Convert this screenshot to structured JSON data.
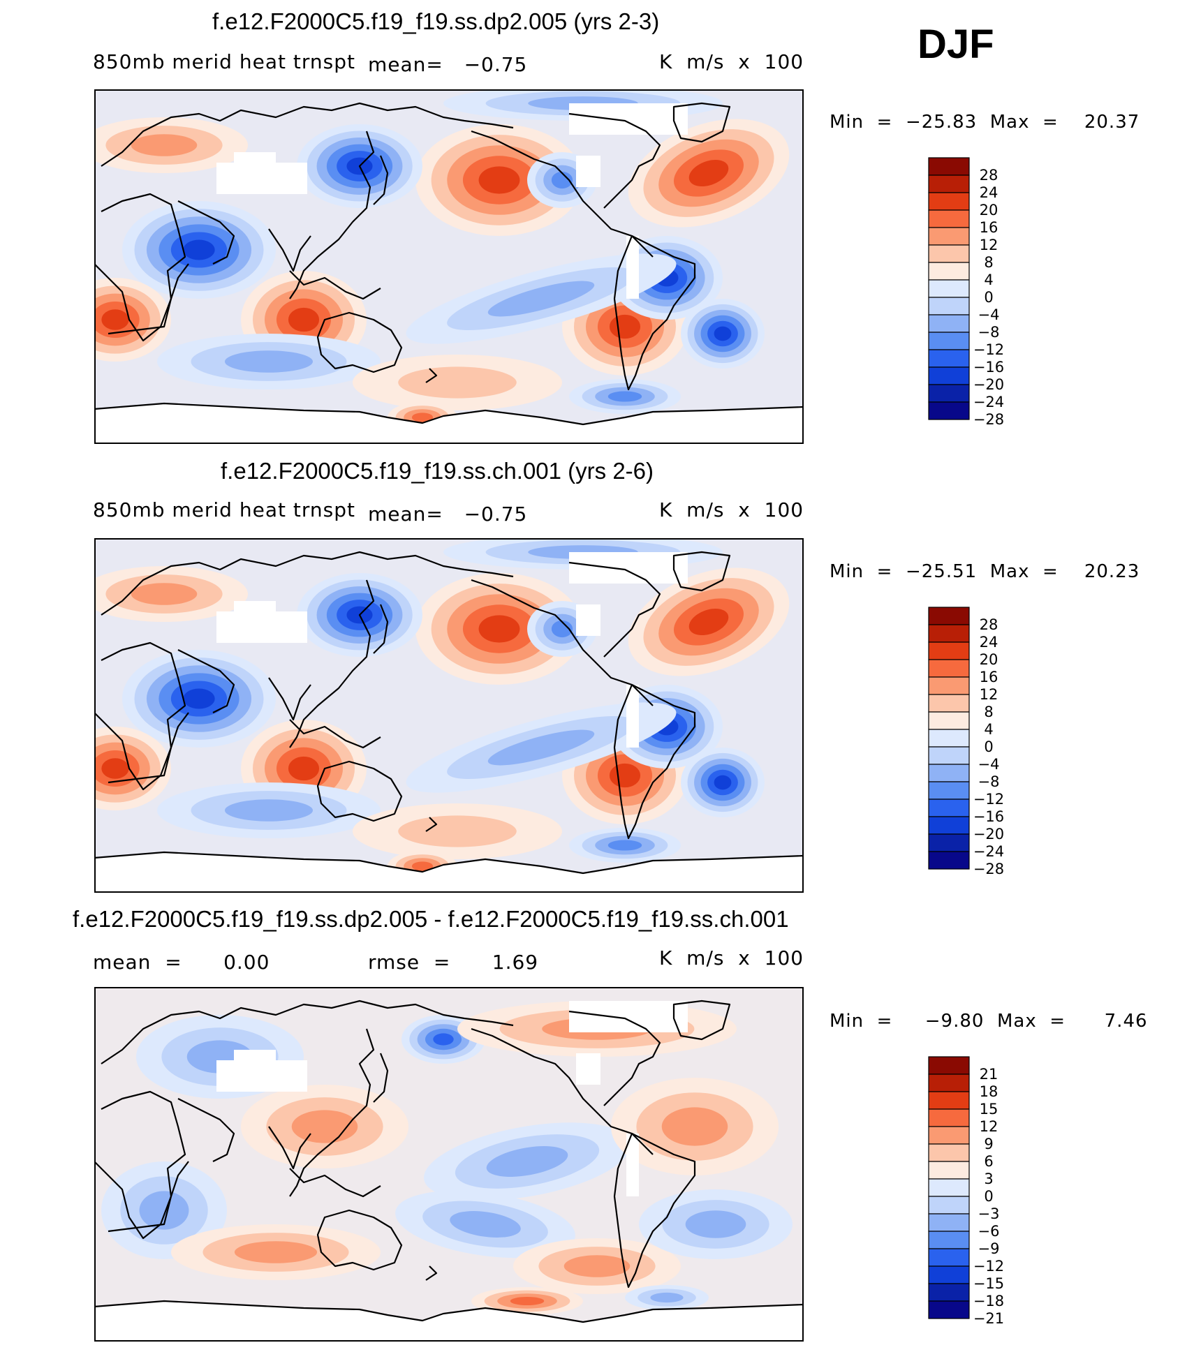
{
  "season": "DJF",
  "palette": {
    "diverging14": [
      "#08088a",
      "#0a22a8",
      "#1040d8",
      "#2a62ee",
      "#5a8ef2",
      "#8fb2f5",
      "#bfd4fa",
      "#dde9fd",
      "#fdebe0",
      "#fcc6ab",
      "#fa9a72",
      "#f66a3e",
      "#e33d14",
      "#b81f06",
      "#8a0a02"
    ],
    "land_mask": "#ffffff",
    "coast": "#000000"
  },
  "panels": [
    {
      "title": "f.e12.F2000C5.f19_f19.ss.dp2.005 (yrs 2-3)",
      "left": "850mb merid heat trnspt",
      "mean_text": "mean=   −0.75",
      "right": "K  m/s  x  100",
      "minmax": "Min  =  −25.83  Max  =    20.37",
      "levels": [
        "28",
        "24",
        "20",
        "16",
        "12",
        "8",
        "4",
        "0",
        "−4",
        "−8",
        "−12",
        "−16",
        "−20",
        "−24",
        "−28"
      ]
    },
    {
      "title": "f.e12.F2000C5.f19_f19.ss.ch.001 (yrs 2-6)",
      "left": "850mb merid heat trnspt",
      "mean_text": "mean=   −0.75",
      "right": "K  m/s  x  100",
      "minmax": "Min  =  −25.51  Max  =    20.23",
      "levels": [
        "28",
        "24",
        "20",
        "16",
        "12",
        "8",
        "4",
        "0",
        "−4",
        "−8",
        "−12",
        "−16",
        "−20",
        "−24",
        "−28"
      ]
    },
    {
      "title": "f.e12.F2000C5.f19_f19.ss.dp2.005 - f.e12.F2000C5.f19_f19.ss.ch.001",
      "left": "mean  =      0.00",
      "mean_text": "rmse  =      1.69",
      "right": "K  m/s  x  100",
      "minmax": "Min  =     −9.80  Max  =      7.46",
      "levels": [
        "21",
        "18",
        "15",
        "12",
        "9",
        "6",
        "3",
        "0",
        "−3",
        "−6",
        "−9",
        "−12",
        "−15",
        "−18",
        "−21"
      ]
    }
  ]
}
